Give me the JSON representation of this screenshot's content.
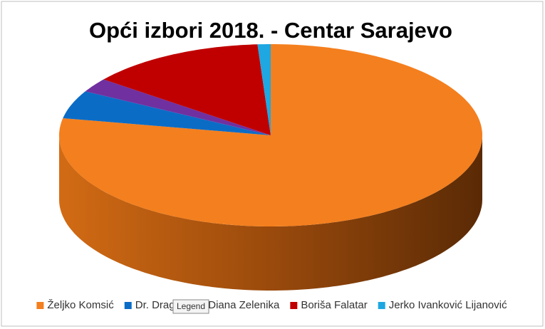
{
  "chart_data": {
    "type": "pie",
    "title": "Opći izbori 2018. - Centar Sarajevo",
    "categories": [
      "Željko Komsić",
      "Dr. Dragan",
      "Diana Zelenika",
      "Boriša Falatar",
      "Jerko Ivanković Lijanović"
    ],
    "values": [
      78,
      5,
      2.5,
      13.5,
      1
    ],
    "colors": [
      "#f47f1e",
      "#0b6cc6",
      "#7030a0",
      "#c00000",
      "#1ea7e1"
    ],
    "legend": "bottom"
  },
  "tooltip": "Legend"
}
